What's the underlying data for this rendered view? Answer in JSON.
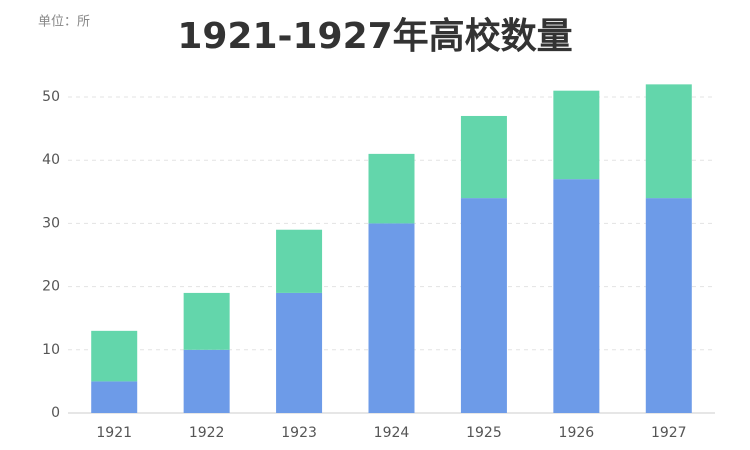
{
  "chart_data": {
    "type": "stacked_bar",
    "title": "1921-1927年高校数量",
    "unit_label": "单位：所",
    "categories": [
      "1921",
      "1922",
      "1923",
      "1924",
      "1925",
      "1926",
      "1927"
    ],
    "series": [
      {
        "color": "#6d9be8",
        "values": [
          5,
          10,
          19,
          30,
          34,
          37,
          34
        ]
      },
      {
        "color": "#63d6ab",
        "values": [
          8,
          9,
          10,
          11,
          13,
          14,
          18
        ]
      }
    ],
    "ylim": [
      0,
      55
    ],
    "yticks": [
      0,
      10,
      20,
      30,
      40,
      50
    ],
    "grid": true
  }
}
